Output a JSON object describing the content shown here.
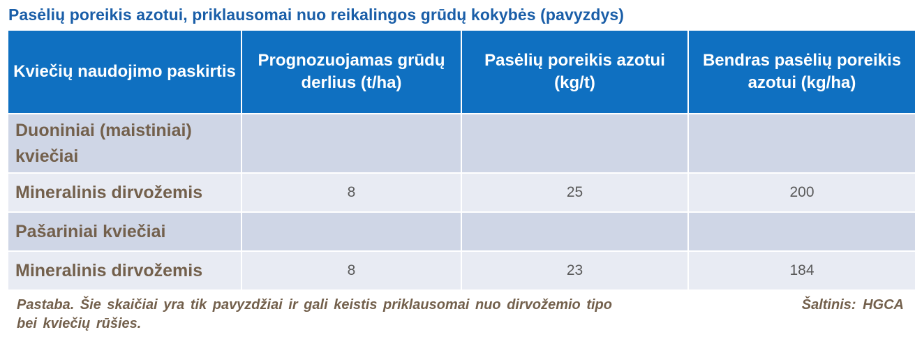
{
  "title": "Pasėlių poreikis azotui, priklausomai nuo reikalingos grūdų kokybės (pavyzdys)",
  "table": {
    "headers": [
      "Kviečių naudojimo paskirtis",
      "Prognozuojamas grūdų derlius (t/ha)",
      "Pasėlių poreikis azotui  (kg/t)",
      "Bendras pasėlių poreikis azotui (kg/ha)"
    ],
    "rows": [
      {
        "label": "Duoniniai (maistiniai) kviečiai",
        "yield": "",
        "need": "",
        "total": ""
      },
      {
        "label": "Mineralinis dirvožemis",
        "yield": "8",
        "need": "25",
        "total": "200"
      },
      {
        "label": "Pašariniai kviečiai",
        "yield": "",
        "need": "",
        "total": ""
      },
      {
        "label": "Mineralinis dirvožemis",
        "yield": "8",
        "need": "23",
        "total": "184"
      }
    ]
  },
  "note": "Pastaba. Šie skaičiai yra tik pavyzdžiai ir gali keistis priklausomai nuo dirvožemio tipo bei kviečių rūšies.",
  "source": "Šaltinis: HGCA",
  "colors": {
    "title": "#1a5ea8",
    "header_bg": "#0f70c1",
    "row_dark": "#cfd6e6",
    "row_light": "#e8ebf3",
    "label_text": "#73604c"
  }
}
